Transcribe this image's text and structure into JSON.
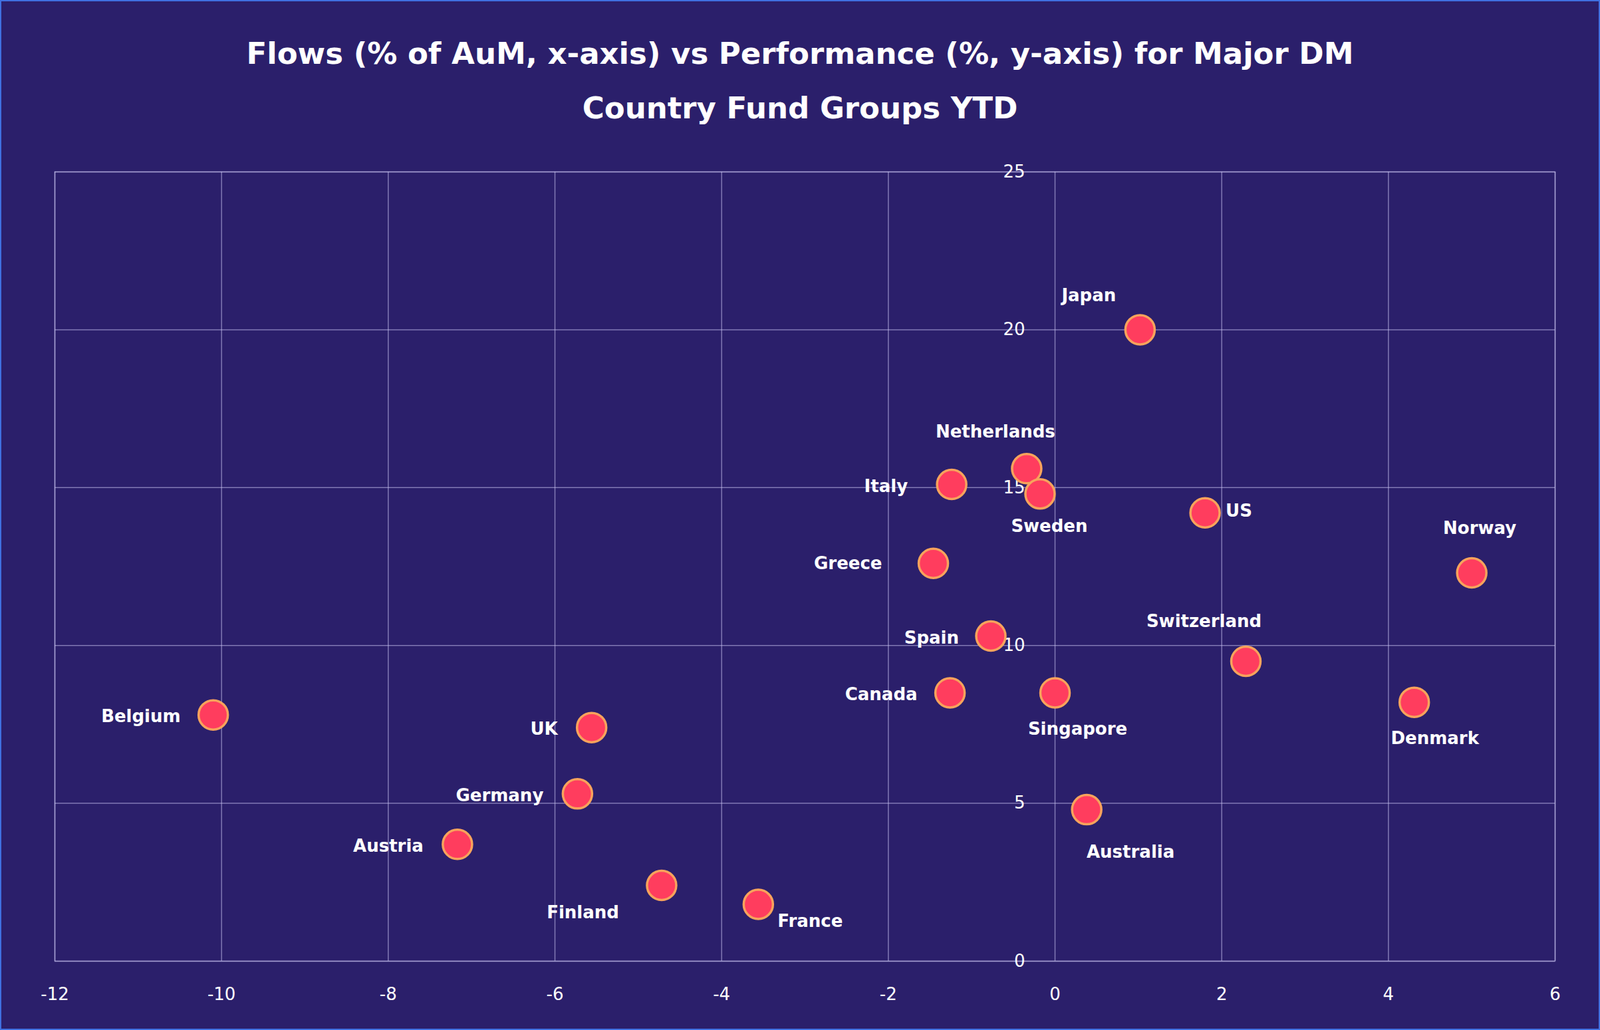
{
  "chart_data": {
    "type": "scatter",
    "title": "Flows (% of AuM, x-axis) vs Performance (%, y-axis) for Major DM Country Fund Groups YTD",
    "labels": [
      "Japan",
      "Netherlands",
      "Italy",
      "Sweden",
      "US",
      "Norway",
      "Greece",
      "Spain",
      "Switzerland",
      "Canada",
      "Singapore",
      "Denmark",
      "Belgium",
      "UK",
      "Germany",
      "Australia",
      "Austria",
      "Finland",
      "France"
    ],
    "x": [
      1.02,
      -0.34,
      -1.24,
      -0.18,
      1.8,
      5.0,
      -1.46,
      -0.77,
      2.29,
      -1.26,
      0.0,
      4.31,
      -10.1,
      -5.56,
      -5.73,
      0.38,
      -7.17,
      -4.72,
      -3.56
    ],
    "values": [
      20.0,
      15.6,
      15.1,
      14.8,
      14.2,
      12.3,
      12.6,
      10.3,
      9.5,
      8.5,
      8.5,
      8.2,
      7.8,
      7.4,
      5.3,
      4.8,
      3.7,
      2.4,
      1.8
    ],
    "color": "#ff3d5e",
    "xlim": [
      -12,
      6
    ],
    "xticks": [
      -12,
      -10,
      -8,
      -6,
      -4,
      -2,
      0,
      2,
      4,
      6
    ],
    "ylim": [
      0,
      25
    ],
    "yticks": [
      0,
      5,
      10,
      15,
      20,
      25
    ],
    "grid": true,
    "marker": "circle"
  }
}
